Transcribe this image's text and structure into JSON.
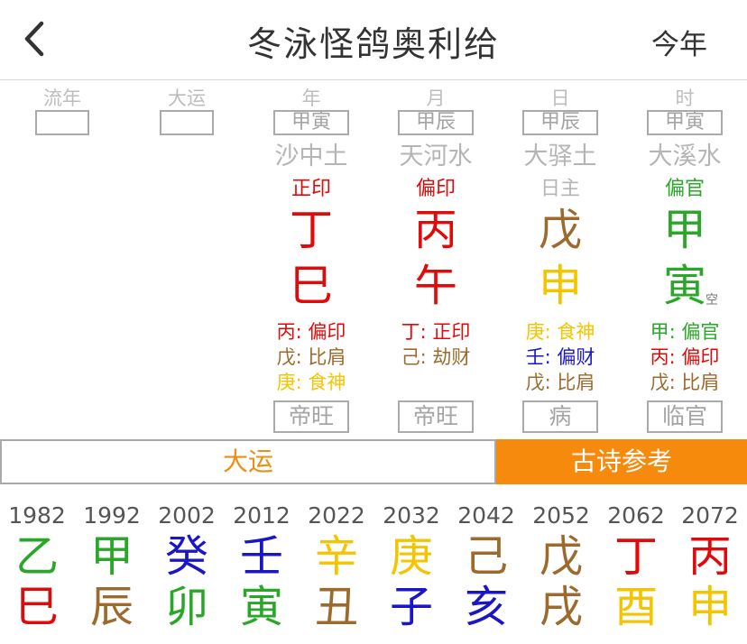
{
  "header": {
    "title": "冬泳怪鸽奥利给",
    "right": "今年",
    "back_icon": "chevron-left-icon"
  },
  "colors": {
    "red": "#e00a0a",
    "brown": "#9b6a2c",
    "yellow": "#f5c400",
    "green": "#2aa728",
    "blue": "#1a16c8",
    "orange": "#f58a0c",
    "gray": "#a4a4a4"
  },
  "columns": [
    {
      "key": "liunian",
      "label": "流年"
    },
    {
      "key": "dayun",
      "label": "大运"
    },
    {
      "key": "nian",
      "label": "年",
      "kongwang": "甲寅",
      "nayin": "沙中土",
      "shishen": "正印",
      "gan": "丁",
      "zhi": "巳",
      "hidden": [
        "丙: 偏印",
        "戊: 比肩",
        "庚: 食神"
      ],
      "changsheng": "帝旺"
    },
    {
      "key": "yue",
      "label": "月",
      "kongwang": "甲辰",
      "nayin": "天河水",
      "shishen": "偏印",
      "gan": "丙",
      "zhi": "午",
      "hidden": [
        "丁: 正印",
        "己: 劫财"
      ],
      "changsheng": "帝旺"
    },
    {
      "key": "ri",
      "label": "日",
      "kongwang": "甲辰",
      "nayin": "大驿土",
      "shishen": "日主",
      "gan": "戊",
      "zhi": "申",
      "hidden": [
        "庚: 食神",
        "壬: 偏财",
        "戊: 比肩"
      ],
      "changsheng": "病"
    },
    {
      "key": "shi",
      "label": "时",
      "kongwang": "甲寅",
      "nayin": "大溪水",
      "shishen": "偏官",
      "gan": "甲",
      "zhi": "寅",
      "hidden": [
        "甲: 偏官",
        "丙: 偏印",
        "戊: 比肩"
      ],
      "changsheng": "临官"
    }
  ],
  "mark": "空",
  "tabs": {
    "dayun": "大运",
    "poetry": "古诗参考"
  },
  "dayun_list": [
    {
      "year": "1982",
      "gan": "乙",
      "zhi": "巳"
    },
    {
      "year": "1992",
      "gan": "甲",
      "zhi": "辰"
    },
    {
      "year": "2002",
      "gan": "癸",
      "zhi": "卯"
    },
    {
      "year": "2012",
      "gan": "壬",
      "zhi": "寅"
    },
    {
      "year": "2022",
      "gan": "辛",
      "zhi": "丑"
    },
    {
      "year": "2032",
      "gan": "庚",
      "zhi": "子"
    },
    {
      "year": "2042",
      "gan": "己",
      "zhi": "亥"
    },
    {
      "year": "2052",
      "gan": "戊",
      "zhi": "戌"
    },
    {
      "year": "2062",
      "gan": "丁",
      "zhi": "酉"
    },
    {
      "year": "2072",
      "gan": "丙",
      "zhi": "申"
    }
  ]
}
